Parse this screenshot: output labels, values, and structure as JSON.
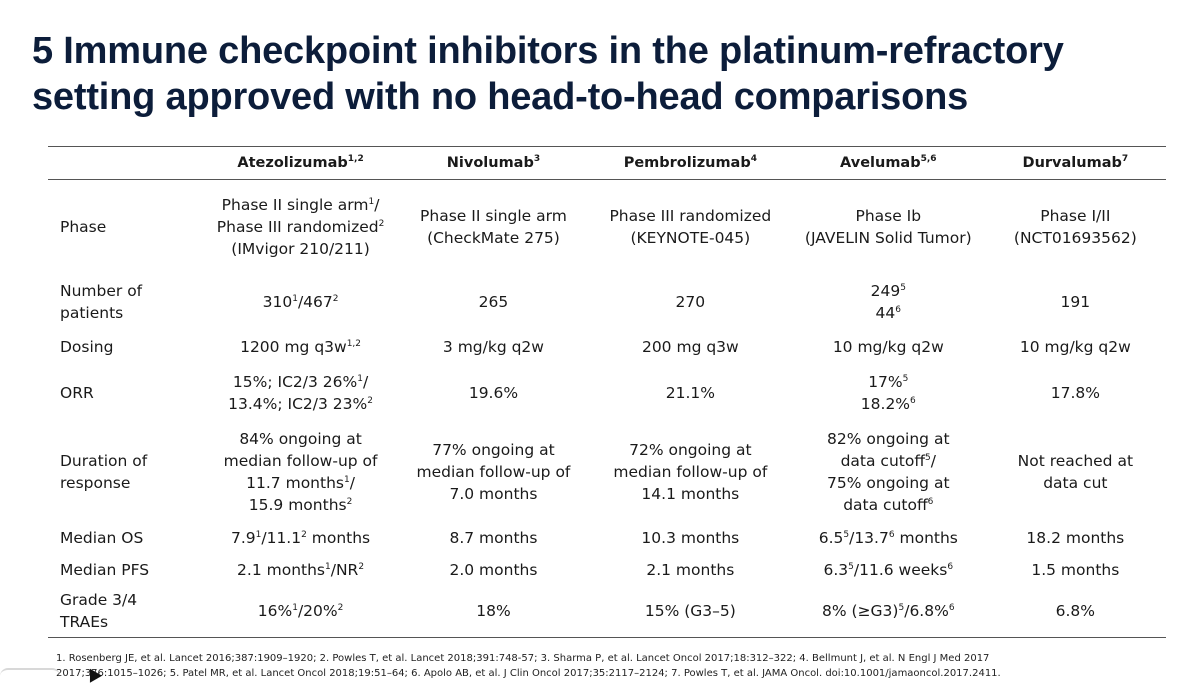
{
  "title": {
    "line1": "5 Immune checkpoint inhibitors in the platinum-refractory",
    "line2": "setting approved with no head-to-head comparisons"
  },
  "table": {
    "columns": [
      {
        "name": "Atezolizumab",
        "sup": "1,2"
      },
      {
        "name": "Nivolumab",
        "sup": "3"
      },
      {
        "name": "Pembrolizumab",
        "sup": "4"
      },
      {
        "name": "Avelumab",
        "sup": "5,6"
      },
      {
        "name": "Durvalumab",
        "sup": "7"
      }
    ],
    "rows": {
      "phase": {
        "label": "Phase",
        "atezo_l1": "Phase II single arm",
        "atezo_l1_sup": "1",
        "atezo_l1_tail": "/",
        "atezo_l2": "Phase III randomized",
        "atezo_l2_sup": "2",
        "atezo_l3": "(IMvigor 210/211)",
        "nivo_l1": "Phase II single arm",
        "nivo_l2": "(CheckMate 275)",
        "pembro_l1": "Phase III randomized",
        "pembro_l2": "(KEYNOTE-045)",
        "avel_l1": "Phase Ib",
        "avel_l2": "(JAVELIN Solid Tumor)",
        "durva_l1": "Phase I/II",
        "durva_l2": "(NCT01693562)"
      },
      "patients": {
        "label_l1": "Number of",
        "label_l2": "patients",
        "atezo_a": "310",
        "atezo_a_sup": "1",
        "atezo_sep": "/",
        "atezo_b": "467",
        "atezo_b_sup": "2",
        "nivo": "265",
        "pembro": "270",
        "avel_a": "249",
        "avel_a_sup": "5",
        "avel_b": "44",
        "avel_b_sup": "6",
        "durva": "191"
      },
      "dosing": {
        "label": "Dosing",
        "atezo": "1200 mg q3w",
        "atezo_sup": "1,2",
        "nivo": "3 mg/kg q2w",
        "pembro": "200 mg q3w",
        "avel": "10 mg/kg q2w",
        "durva": "10 mg/kg q2w"
      },
      "orr": {
        "label": "ORR",
        "atezo_l1": "15%; IC2/3 26%",
        "atezo_l1_sup": "1",
        "atezo_l1_tail": "/",
        "atezo_l2": "13.4%; IC2/3 23%",
        "atezo_l2_sup": "2",
        "nivo": "19.6%",
        "pembro": "21.1%",
        "avel_a": "17%",
        "avel_a_sup": "5",
        "avel_b": "18.2%",
        "avel_b_sup": "6",
        "durva": "17.8%"
      },
      "duration": {
        "label_l1": "Duration of",
        "label_l2": "response",
        "atezo_l1": "84% ongoing at",
        "atezo_l2": "median follow-up of",
        "atezo_l3": "11.7 months",
        "atezo_l3_sup": "1",
        "atezo_l3_tail": "/",
        "atezo_l4": "15.9 months",
        "atezo_l4_sup": "2",
        "nivo_l1": "77% ongoing at",
        "nivo_l2": "median follow-up of",
        "nivo_l3": "7.0 months",
        "pembro_l1": "72% ongoing at",
        "pembro_l2": "median follow-up of",
        "pembro_l3": "14.1 months",
        "avel_l1": "82% ongoing at",
        "avel_l2": "data cutoff",
        "avel_l2_sup": "5",
        "avel_l2_tail": "/",
        "avel_l3": "75% ongoing at",
        "avel_l4": "data cutoff",
        "avel_l4_sup": "6",
        "durva_l1": "Not reached at",
        "durva_l2": "data cut"
      },
      "os": {
        "label": "Median OS",
        "atezo_a": "7.9",
        "atezo_a_sup": "1",
        "atezo_b": "/11.1",
        "atezo_b_sup": "2",
        "atezo_tail": " months",
        "nivo": "8.7 months",
        "pembro": "10.3 months",
        "avel_a": "6.5",
        "avel_a_sup": "5",
        "avel_b": "/13.7",
        "avel_b_sup": "6",
        "avel_tail": " months",
        "durva": "18.2 months"
      },
      "pfs": {
        "label": "Median PFS",
        "atezo_a": "2.1 months",
        "atezo_a_sup": "1",
        "atezo_b": "/NR",
        "atezo_b_sup": "2",
        "nivo": "2.0 months",
        "pembro": "2.1 months",
        "avel_a": "6.3",
        "avel_a_sup": "5",
        "avel_b": "/11.6 weeks",
        "avel_b_sup": "6",
        "durva": "1.5 months"
      },
      "traes": {
        "label_l1": "Grade 3/4",
        "label_l2": "TRAEs",
        "atezo_a": "16%",
        "atezo_a_sup": "1",
        "atezo_b": "/20%",
        "atezo_b_sup": "2",
        "nivo": "18%",
        "pembro": "15% (G3–5)",
        "avel_a": "8% (≥G3)",
        "avel_a_sup": "5",
        "avel_b": "/6.8%",
        "avel_b_sup": "6",
        "durva": "6.8%"
      }
    }
  },
  "references": {
    "line1": "1. Rosenberg JE, et al. Lancet 2016;387:1909–1920; 2. Powles T, et al. Lancet 2018;391:748-57; 3. Sharma P, et al. Lancet Oncol 2017;18:312–322; 4. Bellmunt J, et al. N Engl J Med 2017",
    "line2": "2017;376:1015–1026; 5. Patel MR, et al. Lancet Oncol 2018;19:51–64; 6. Apolo AB, et al. J Clin Oncol 2017;35:2117–2124; 7. Powles T, et al. JAMA Oncol. doi:10.1001/jamaoncol.2017.2411."
  }
}
